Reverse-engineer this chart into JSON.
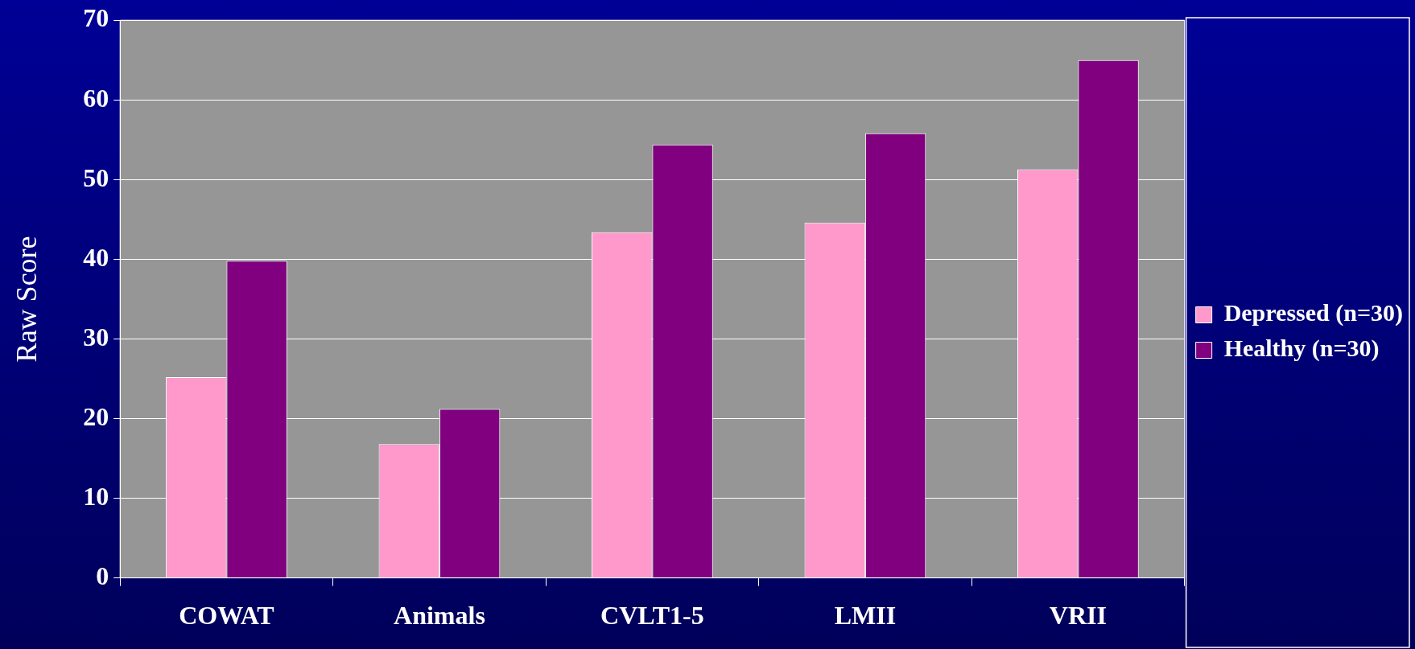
{
  "chart_data": {
    "type": "bar",
    "ylabel": "Raw Score",
    "categories": [
      "COWAT",
      "Animals",
      "CVLT1-5",
      "LMII",
      "VRII"
    ],
    "series": [
      {
        "name": "Depressed (n=30)",
        "color": "#ff99cc",
        "values": [
          25.2,
          16.8,
          43.4,
          44.6,
          51.3
        ]
      },
      {
        "name": "Healthy (n=30)",
        "color": "#800080",
        "values": [
          39.8,
          21.2,
          54.4,
          55.8,
          65.0
        ]
      }
    ],
    "ylim": [
      0,
      70
    ],
    "yticks": [
      0,
      10,
      20,
      30,
      40,
      50,
      60,
      70
    ],
    "grid": "y",
    "legend": "right"
  }
}
